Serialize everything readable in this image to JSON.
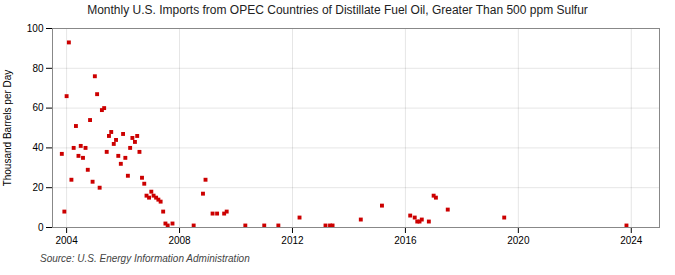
{
  "chart_data": {
    "type": "scatter",
    "title": "Monthly U.S. Imports from OPEC Countries of Distillate Fuel Oil, Greater Than 500 ppm Sulfur",
    "ylabel": "Thousand Barrels per Day",
    "source": "Source: U.S. Energy Information Administration",
    "color": "#cc0000",
    "marker": "square",
    "grid": true,
    "xlim": [
      2003.5,
      2025.0
    ],
    "ylim": [
      0,
      100
    ],
    "xticks": [
      2004,
      2008,
      2012,
      2016,
      2020,
      2024
    ],
    "yticks": [
      0,
      20,
      40,
      60,
      80,
      100
    ],
    "x": [
      2003.83,
      2003.92,
      2004.0,
      2004.08,
      2004.17,
      2004.25,
      2004.33,
      2004.42,
      2004.5,
      2004.58,
      2004.67,
      2004.75,
      2004.83,
      2004.92,
      2005.0,
      2005.08,
      2005.17,
      2005.25,
      2005.33,
      2005.42,
      2005.5,
      2005.58,
      2005.67,
      2005.75,
      2005.83,
      2005.92,
      2006.0,
      2006.08,
      2006.17,
      2006.25,
      2006.33,
      2006.42,
      2006.5,
      2006.58,
      2006.67,
      2006.75,
      2006.83,
      2006.92,
      2007.0,
      2007.08,
      2007.17,
      2007.25,
      2007.33,
      2007.42,
      2007.5,
      2007.58,
      2007.75,
      2008.5,
      2008.83,
      2008.92,
      2009.17,
      2009.33,
      2009.58,
      2009.67,
      2010.33,
      2011.0,
      2011.5,
      2012.25,
      2013.17,
      2013.33,
      2013.42,
      2014.42,
      2015.17,
      2016.17,
      2016.33,
      2016.42,
      2016.5,
      2016.58,
      2016.83,
      2017.0,
      2017.08,
      2017.5,
      2019.5,
      2023.83
    ],
    "values": [
      37,
      8,
      66,
      93,
      24,
      40,
      51,
      36,
      41,
      35,
      40,
      29,
      54,
      23,
      76,
      67,
      20,
      59,
      60,
      38,
      46,
      48,
      42,
      44,
      36,
      32,
      47,
      35,
      26,
      40,
      45,
      43,
      46,
      38,
      25,
      22,
      16,
      15,
      18,
      16,
      15,
      14,
      13,
      8,
      2,
      1,
      2,
      1,
      17,
      24,
      7,
      7,
      7,
      8,
      1,
      1,
      1,
      5,
      1,
      1,
      1,
      4,
      11,
      6,
      5,
      3,
      3,
      4,
      3,
      16,
      15,
      9,
      5,
      1
    ]
  }
}
